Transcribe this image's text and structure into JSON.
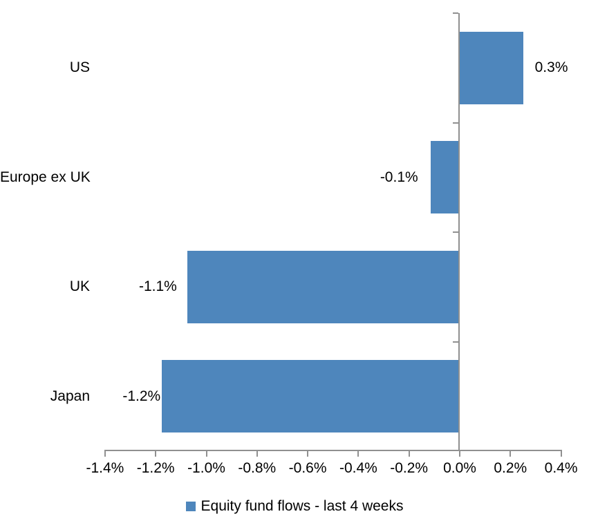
{
  "chart_data": {
    "type": "bar",
    "orientation": "horizontal",
    "categories": [
      "US",
      "Europe ex UK",
      "UK",
      "Japan"
    ],
    "values": [
      0.3,
      -0.1,
      -1.1,
      -1.2
    ],
    "value_labels": [
      "0.3%",
      "-0.1%",
      "-1.1%",
      "-1.2%"
    ],
    "plot_values_estimated": [
      0.25,
      -0.11,
      -1.07,
      -1.17
    ],
    "x_tick_labels": [
      "-1.4%",
      "-1.2%",
      "-1.0%",
      "-0.8%",
      "-0.6%",
      "-0.4%",
      "-0.2%",
      "0.0%",
      "0.2%",
      "0.4%"
    ],
    "x_tick_values": [
      -1.4,
      -1.2,
      -1.0,
      -0.8,
      -0.6,
      -0.4,
      -0.2,
      0.0,
      0.2,
      0.4
    ],
    "xlim": [
      -1.4,
      0.4
    ],
    "xlabel": "",
    "ylabel": "",
    "grid": false,
    "legend_position": "bottom",
    "legend": [
      {
        "label": "Equity fund flows - last 4 weeks",
        "color": "#4E86BC"
      }
    ],
    "colors": {
      "bar": "#4E86BC",
      "axis": "#909090",
      "text": "#000000",
      "background": "#FFFFFF"
    }
  }
}
